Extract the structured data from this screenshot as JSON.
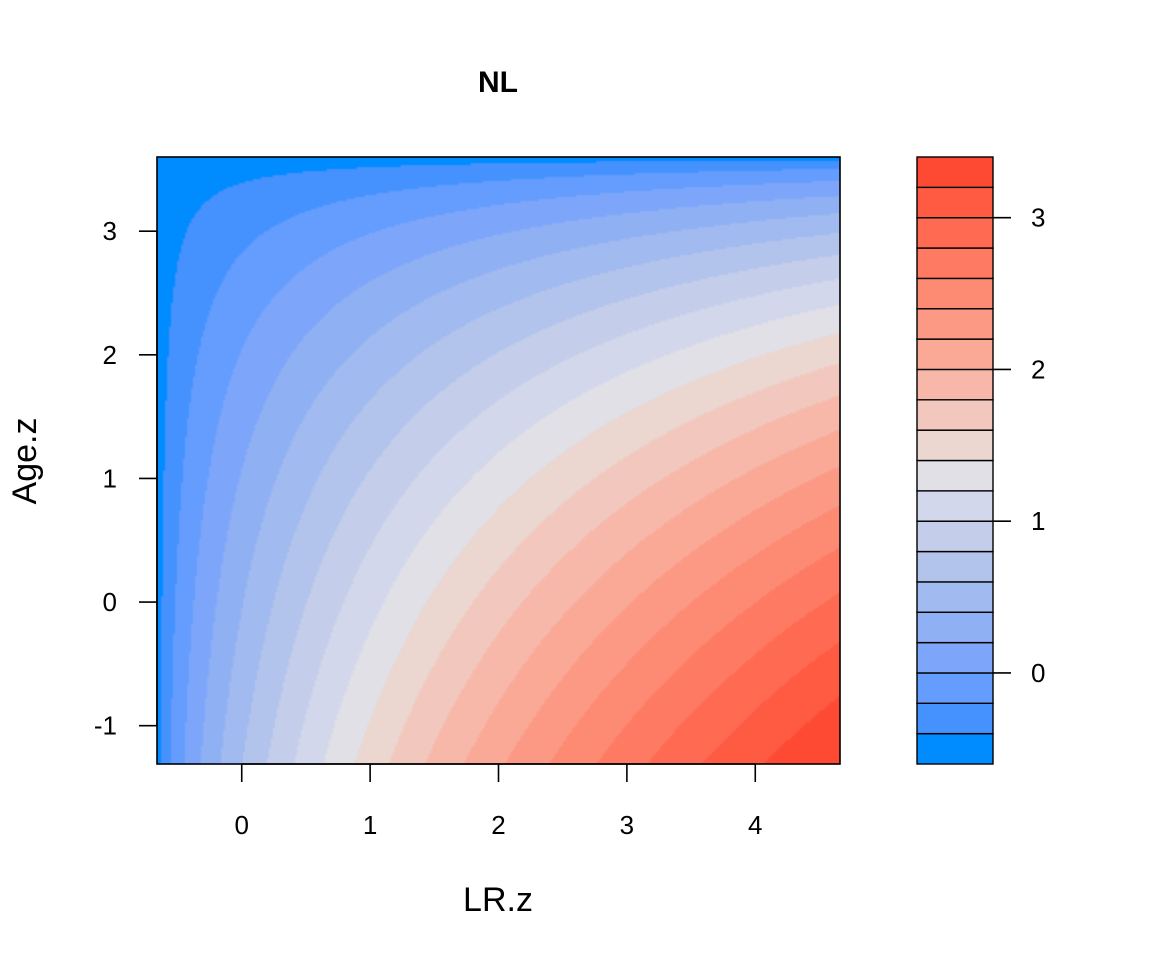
{
  "chart_data": {
    "type": "heatmap",
    "title": "NL",
    "xlabel": "LR.z",
    "ylabel": "Age.z",
    "xlim": [
      -0.66,
      4.66
    ],
    "ylim": [
      -1.31,
      3.6
    ],
    "xticks": [
      0,
      1,
      2,
      3,
      4
    ],
    "yticks": [
      -1,
      0,
      1,
      2,
      3
    ],
    "xtick_labels": [
      "0",
      "1",
      "2",
      "3",
      "4"
    ],
    "ytick_labels": [
      "-1",
      "0",
      "1",
      "2",
      "3"
    ],
    "surface": {
      "description": "contour surface increasing toward high LR.z and low Age.z",
      "z_min": -0.55,
      "z_max": 3.4,
      "level_step": 0.2
    },
    "colorbar": {
      "levels": [
        -0.6,
        -0.4,
        -0.2,
        0.0,
        0.2,
        0.4,
        0.6,
        0.8,
        1.0,
        1.2,
        1.4,
        1.6,
        1.8,
        2.0,
        2.2,
        2.4,
        2.6,
        2.8,
        3.0,
        3.2,
        3.4
      ],
      "colors": [
        "#008BFF",
        "#4592FF",
        "#659DFE",
        "#7DA6FA",
        "#90B0F4",
        "#A1BAEF",
        "#B3C4EC",
        "#C4CEEA",
        "#D2D7EB",
        "#E0E0E6",
        "#EBD6D0",
        "#F2C8BE",
        "#F7B8AA",
        "#FAA997",
        "#FC9984",
        "#FD8A73",
        "#FE7A62",
        "#FE6A52",
        "#FF5A42",
        "#FF4A33"
      ],
      "ticks": [
        0,
        1,
        2,
        3
      ],
      "tick_labels": [
        "0",
        "1",
        "2",
        "3"
      ]
    }
  }
}
